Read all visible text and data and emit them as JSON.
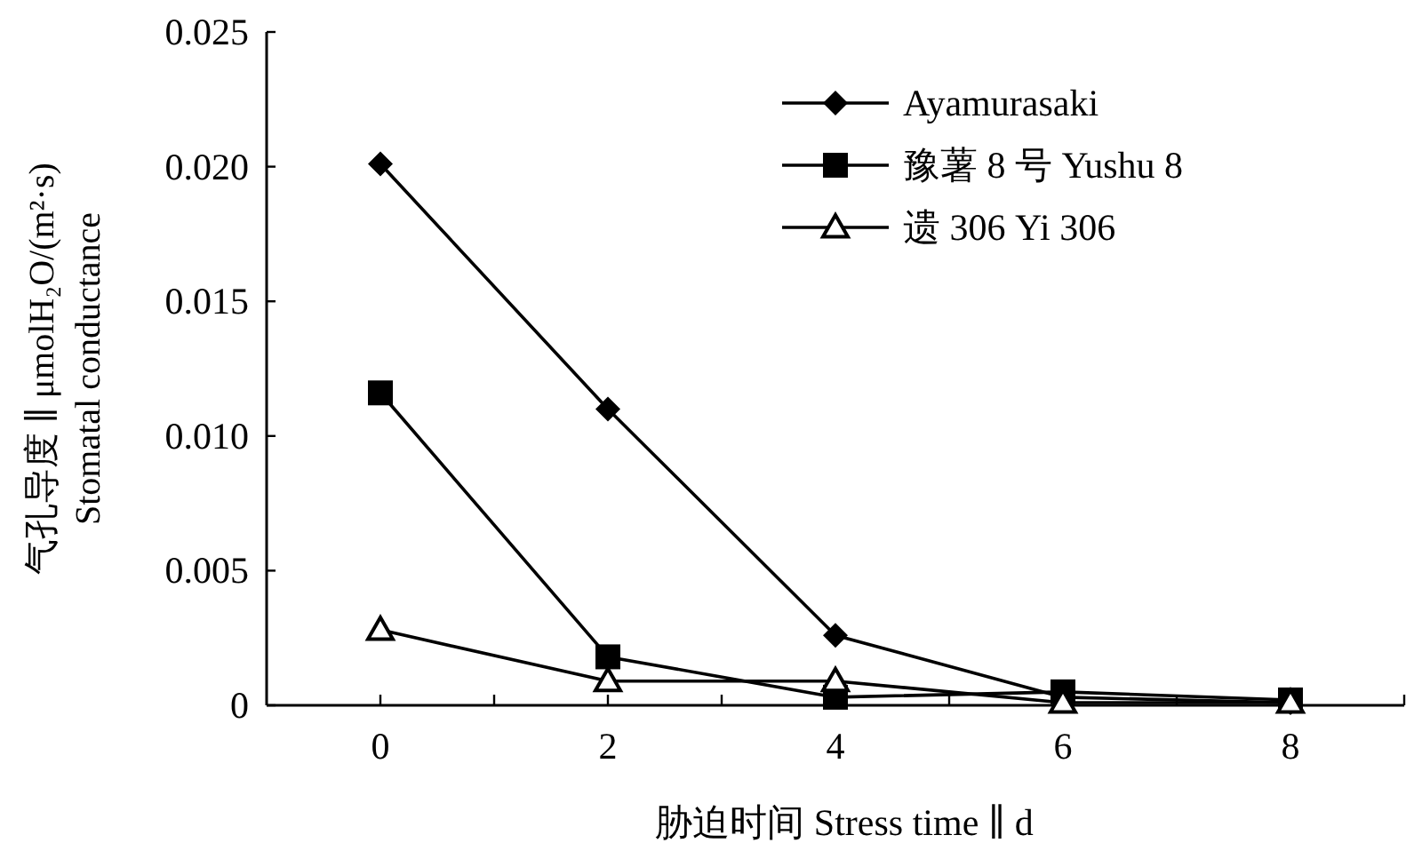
{
  "chart_data": {
    "type": "line",
    "xlabel": "胁迫时间 Stress time ∥ d",
    "ylabel": "气孔导度 ∥ μmolH₂O/(m²·s)\nStomatal conductance",
    "x": [
      0,
      2,
      4,
      6,
      8
    ],
    "series": [
      {
        "name": "Ayamurasaki",
        "color": "#000000",
        "marker": "diamond",
        "values": [
          0.0201,
          0.011,
          0.0026,
          0.0003,
          0.0001
        ]
      },
      {
        "name": "豫薯 8 号 Yushu 8",
        "color": "#000000",
        "marker": "square",
        "values": [
          0.0116,
          0.0018,
          0.0003,
          0.0005,
          0.0002
        ]
      },
      {
        "name": "遗 306 Yi 306",
        "color": "#000000",
        "marker": "triangle",
        "values": [
          0.0028,
          0.0009,
          0.0009,
          0.0001,
          0.0001
        ]
      }
    ],
    "xlim": [
      -1,
      9
    ],
    "xticks": [
      {
        "value": 0,
        "label": "0"
      },
      {
        "value": 1,
        "label": null
      },
      {
        "value": 2,
        "label": "2"
      },
      {
        "value": 3,
        "label": null
      },
      {
        "value": 4,
        "label": "4"
      },
      {
        "value": 5,
        "label": null
      },
      {
        "value": 6,
        "label": "6"
      },
      {
        "value": 7,
        "label": null
      },
      {
        "value": 8,
        "label": "8"
      },
      {
        "value": 9,
        "label": null
      }
    ],
    "ylim": [
      0,
      0.025
    ],
    "yticks": [
      0,
      0.005,
      {
        "value": 0.01,
        "label": "0.010"
      },
      0.015,
      {
        "value": 0.02,
        "label": "0.020"
      },
      0.025
    ],
    "grid": false,
    "legend": "top right",
    "line_style": "solid"
  }
}
